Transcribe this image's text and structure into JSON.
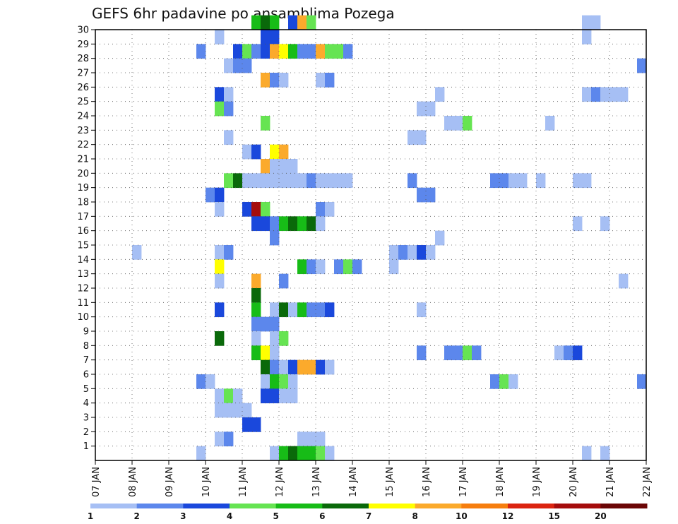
{
  "chart_data": {
    "type": "heatmap",
    "title": "GEFS 6hr padavine po ansamblima Pozega",
    "xlabel": "",
    "ylabel": "",
    "x_tick_labels": [
      "07 JAN",
      "08 JAN",
      "09 JAN",
      "10 JAN",
      "11 JAN",
      "12 JAN",
      "13 JAN",
      "14 JAN",
      "15 JAN",
      "16 JAN",
      "17 JAN",
      "18 JAN",
      "19 JAN",
      "20 JAN",
      "21 JAN",
      "22 JAN"
    ],
    "xlim_days": [
      7,
      22
    ],
    "time_step_hours": 6,
    "y_tick_labels": [
      "1",
      "2",
      "3",
      "4",
      "5",
      "6",
      "7",
      "8",
      "9",
      "10",
      "11",
      "12",
      "13",
      "14",
      "15",
      "16",
      "17",
      "18",
      "19",
      "20",
      "21",
      "22",
      "23",
      "24",
      "25",
      "26",
      "27",
      "28",
      "29",
      "30"
    ],
    "ylim": [
      0,
      30
    ],
    "grid": true,
    "legend_position": "bottom",
    "legend": {
      "thresholds": [
        "1",
        "2",
        "3",
        "4",
        "5",
        "6",
        "7",
        "8",
        "10",
        "12",
        "15",
        "20"
      ],
      "colors": [
        "#a6bff4",
        "#5c87ec",
        "#1a48dc",
        "#66e452",
        "#17bc17",
        "#0a690a",
        "#ffff00",
        "#fbaa2c",
        "#f67e0e",
        "#db2410",
        "#a50c0c",
        "#6b0606"
      ]
    },
    "cells_note": "each cell: member (row 0-30), start day (fractional, 6-hourly), color class 1-12",
    "cells": [
      [
        30,
        11.25,
        5
      ],
      [
        30,
        11.5,
        6
      ],
      [
        30,
        11.75,
        5
      ],
      [
        30,
        12.25,
        3
      ],
      [
        30,
        12.5,
        8
      ],
      [
        30,
        12.75,
        4
      ],
      [
        30,
        20.25,
        1
      ],
      [
        30,
        20.5,
        1
      ],
      [
        29,
        10.25,
        1
      ],
      [
        29,
        11.5,
        3
      ],
      [
        29,
        11.75,
        3
      ],
      [
        29,
        20.25,
        1
      ],
      [
        28,
        9.75,
        2
      ],
      [
        28,
        10.75,
        3
      ],
      [
        28,
        11.0,
        4
      ],
      [
        28,
        11.25,
        2
      ],
      [
        28,
        11.5,
        3
      ],
      [
        28,
        11.75,
        8
      ],
      [
        28,
        12.0,
        7
      ],
      [
        28,
        12.25,
        5
      ],
      [
        28,
        12.5,
        2
      ],
      [
        28,
        12.75,
        2
      ],
      [
        28,
        13.0,
        8
      ],
      [
        28,
        13.25,
        4
      ],
      [
        28,
        13.5,
        4
      ],
      [
        28,
        13.75,
        2
      ],
      [
        27,
        10.5,
        1
      ],
      [
        27,
        10.75,
        2
      ],
      [
        27,
        11.0,
        2
      ],
      [
        27,
        21.75,
        2
      ],
      [
        26,
        11.5,
        8
      ],
      [
        26,
        11.75,
        2
      ],
      [
        26,
        12.0,
        1
      ],
      [
        26,
        13.0,
        1
      ],
      [
        26,
        13.25,
        2
      ],
      [
        25,
        10.25,
        3
      ],
      [
        25,
        10.5,
        1
      ],
      [
        25,
        16.25,
        1
      ],
      [
        25,
        20.25,
        1
      ],
      [
        25,
        20.5,
        2
      ],
      [
        25,
        20.75,
        1
      ],
      [
        25,
        21.0,
        1
      ],
      [
        25,
        21.25,
        1
      ],
      [
        24,
        10.25,
        4
      ],
      [
        24,
        10.5,
        2
      ],
      [
        24,
        15.75,
        1
      ],
      [
        24,
        16.0,
        1
      ],
      [
        23,
        11.5,
        4
      ],
      [
        23,
        16.5,
        1
      ],
      [
        23,
        16.75,
        1
      ],
      [
        23,
        17.0,
        4
      ],
      [
        23,
        19.25,
        1
      ],
      [
        22,
        10.5,
        1
      ],
      [
        22,
        15.5,
        1
      ],
      [
        22,
        15.75,
        1
      ],
      [
        21,
        11.0,
        1
      ],
      [
        21,
        11.25,
        3
      ],
      [
        21,
        11.75,
        7
      ],
      [
        21,
        12.0,
        8
      ],
      [
        20,
        11.5,
        8
      ],
      [
        20,
        11.75,
        1
      ],
      [
        20,
        12.0,
        1
      ],
      [
        20,
        12.25,
        1
      ],
      [
        19,
        10.5,
        4
      ],
      [
        19,
        10.75,
        6
      ],
      [
        19,
        11.0,
        1
      ],
      [
        19,
        11.25,
        1
      ],
      [
        19,
        11.5,
        1
      ],
      [
        19,
        11.75,
        1
      ],
      [
        19,
        12.0,
        1
      ],
      [
        19,
        12.25,
        1
      ],
      [
        19,
        12.5,
        1
      ],
      [
        19,
        12.75,
        2
      ],
      [
        19,
        13.0,
        1
      ],
      [
        19,
        13.25,
        1
      ],
      [
        19,
        13.5,
        1
      ],
      [
        19,
        13.75,
        1
      ],
      [
        19,
        15.5,
        2
      ],
      [
        19,
        17.75,
        2
      ],
      [
        19,
        18.0,
        2
      ],
      [
        19,
        18.25,
        1
      ],
      [
        19,
        18.5,
        1
      ],
      [
        19,
        19.0,
        1
      ],
      [
        19,
        20.0,
        1
      ],
      [
        19,
        20.25,
        1
      ],
      [
        18,
        10.0,
        2
      ],
      [
        18,
        10.25,
        3
      ],
      [
        18,
        15.75,
        2
      ],
      [
        18,
        16.0,
        2
      ],
      [
        17,
        10.25,
        1
      ],
      [
        17,
        11.0,
        3
      ],
      [
        17,
        11.25,
        11
      ],
      [
        17,
        11.5,
        4
      ],
      [
        17,
        13.0,
        2
      ],
      [
        17,
        13.25,
        1
      ],
      [
        16,
        11.25,
        3
      ],
      [
        16,
        11.5,
        3
      ],
      [
        16,
        11.75,
        2
      ],
      [
        16,
        12.0,
        5
      ],
      [
        16,
        12.25,
        6
      ],
      [
        16,
        12.5,
        5
      ],
      [
        16,
        12.75,
        6
      ],
      [
        16,
        13.0,
        1
      ],
      [
        16,
        20.0,
        1
      ],
      [
        16,
        20.75,
        1
      ],
      [
        15,
        11.75,
        2
      ],
      [
        15,
        16.25,
        1
      ],
      [
        14,
        8.0,
        1
      ],
      [
        14,
        10.25,
        1
      ],
      [
        14,
        10.5,
        2
      ],
      [
        14,
        15.0,
        1
      ],
      [
        14,
        15.25,
        2
      ],
      [
        14,
        15.5,
        1
      ],
      [
        14,
        15.75,
        3
      ],
      [
        14,
        16.0,
        1
      ],
      [
        13,
        10.25,
        7
      ],
      [
        13,
        12.5,
        5
      ],
      [
        13,
        12.75,
        2
      ],
      [
        13,
        13.0,
        1
      ],
      [
        13,
        13.5,
        2
      ],
      [
        13,
        13.75,
        4
      ],
      [
        13,
        14.0,
        2
      ],
      [
        13,
        15.0,
        1
      ],
      [
        12,
        10.25,
        1
      ],
      [
        12,
        11.25,
        8
      ],
      [
        12,
        12.0,
        2
      ],
      [
        12,
        21.25,
        1
      ],
      [
        11,
        11.25,
        6
      ],
      [
        10,
        10.25,
        3
      ],
      [
        10,
        11.25,
        5
      ],
      [
        10,
        11.75,
        1
      ],
      [
        10,
        12.0,
        6
      ],
      [
        10,
        12.25,
        1
      ],
      [
        10,
        12.5,
        5
      ],
      [
        10,
        12.75,
        2
      ],
      [
        10,
        13.0,
        2
      ],
      [
        10,
        13.25,
        3
      ],
      [
        10,
        15.75,
        1
      ],
      [
        9,
        11.25,
        2
      ],
      [
        9,
        11.5,
        2
      ],
      [
        9,
        11.75,
        2
      ],
      [
        8,
        10.25,
        6
      ],
      [
        8,
        11.25,
        1
      ],
      [
        8,
        11.75,
        1
      ],
      [
        8,
        12.0,
        4
      ],
      [
        7,
        11.25,
        5
      ],
      [
        7,
        11.5,
        7
      ],
      [
        7,
        11.75,
        1
      ],
      [
        7,
        15.75,
        2
      ],
      [
        7,
        16.5,
        2
      ],
      [
        7,
        16.75,
        2
      ],
      [
        7,
        17.0,
        4
      ],
      [
        7,
        17.25,
        2
      ],
      [
        7,
        19.5,
        1
      ],
      [
        7,
        19.75,
        2
      ],
      [
        7,
        20.0,
        3
      ],
      [
        6,
        11.5,
        6
      ],
      [
        6,
        11.75,
        2
      ],
      [
        6,
        12.0,
        1
      ],
      [
        6,
        12.25,
        3
      ],
      [
        6,
        12.5,
        8
      ],
      [
        6,
        12.75,
        8
      ],
      [
        6,
        13.0,
        3
      ],
      [
        6,
        13.25,
        1
      ],
      [
        5,
        9.75,
        2
      ],
      [
        5,
        10.0,
        1
      ],
      [
        5,
        11.5,
        1
      ],
      [
        5,
        11.75,
        5
      ],
      [
        5,
        12.0,
        4
      ],
      [
        5,
        12.25,
        1
      ],
      [
        5,
        17.75,
        2
      ],
      [
        5,
        18.0,
        4
      ],
      [
        5,
        18.25,
        1
      ],
      [
        5,
        21.75,
        2
      ],
      [
        4,
        10.25,
        1
      ],
      [
        4,
        10.5,
        4
      ],
      [
        4,
        10.75,
        1
      ],
      [
        4,
        11.5,
        3
      ],
      [
        4,
        11.75,
        3
      ],
      [
        4,
        12.0,
        1
      ],
      [
        4,
        12.25,
        1
      ],
      [
        3,
        10.25,
        1
      ],
      [
        3,
        10.5,
        1
      ],
      [
        3,
        10.75,
        1
      ],
      [
        3,
        11.0,
        1
      ],
      [
        2,
        11.0,
        3
      ],
      [
        2,
        11.25,
        3
      ],
      [
        1,
        10.25,
        1
      ],
      [
        1,
        10.5,
        2
      ],
      [
        1,
        12.5,
        1
      ],
      [
        1,
        12.75,
        1
      ],
      [
        1,
        13.0,
        1
      ],
      [
        0,
        9.75,
        1
      ],
      [
        0,
        11.75,
        1
      ],
      [
        0,
        12.0,
        5
      ],
      [
        0,
        12.25,
        6
      ],
      [
        0,
        12.5,
        5
      ],
      [
        0,
        12.75,
        5
      ],
      [
        0,
        13.0,
        4
      ],
      [
        0,
        13.25,
        1
      ],
      [
        0,
        20.25,
        1
      ],
      [
        0,
        20.75,
        1
      ]
    ]
  }
}
